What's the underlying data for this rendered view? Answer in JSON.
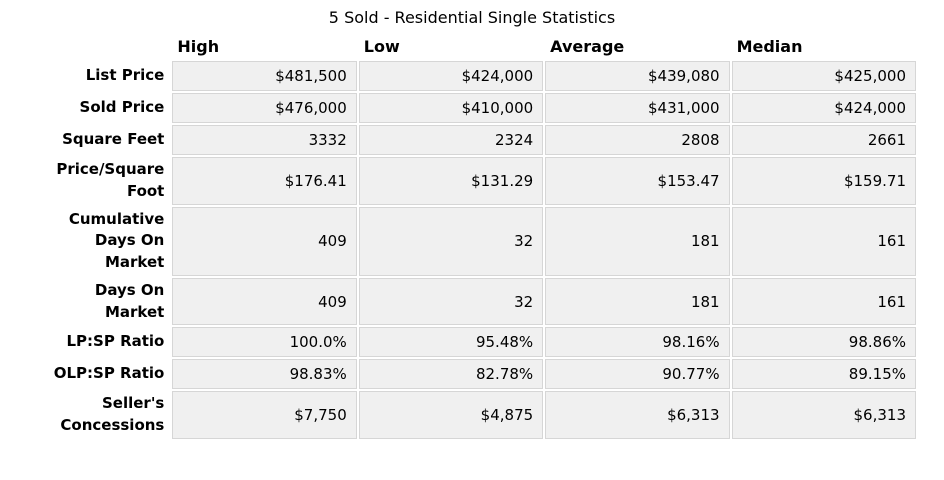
{
  "chart_data": {
    "type": "table",
    "title": "5 Sold - Residential Single Statistics",
    "columns": [
      "High",
      "Low",
      "Average",
      "Median"
    ],
    "rows": [
      {
        "label": "List Price",
        "values": [
          "$481,500",
          "$424,000",
          "$439,080",
          "$425,000"
        ]
      },
      {
        "label": "Sold Price",
        "values": [
          "$476,000",
          "$410,000",
          "$431,000",
          "$424,000"
        ]
      },
      {
        "label": "Square Feet",
        "values": [
          "3332",
          "2324",
          "2808",
          "2661"
        ]
      },
      {
        "label": "Price/Square Foot",
        "values": [
          "$176.41",
          "$131.29",
          "$153.47",
          "$159.71"
        ]
      },
      {
        "label": "Cumulative Days On Market",
        "values": [
          "409",
          "32",
          "181",
          "161"
        ]
      },
      {
        "label": "Days On Market",
        "values": [
          "409",
          "32",
          "181",
          "161"
        ]
      },
      {
        "label": "LP:SP Ratio",
        "values": [
          "100.0%",
          "95.48%",
          "98.16%",
          "98.86%"
        ]
      },
      {
        "label": "OLP:SP Ratio",
        "values": [
          "98.83%",
          "82.78%",
          "90.77%",
          "89.15%"
        ]
      },
      {
        "label": "Seller's Concessions",
        "values": [
          "$7,750",
          "$4,875",
          "$6,313",
          "$6,313"
        ]
      }
    ],
    "layout": {
      "grid": false,
      "cell_background": "#f0f0f0",
      "cell_border": "#d6d6d6"
    }
  }
}
